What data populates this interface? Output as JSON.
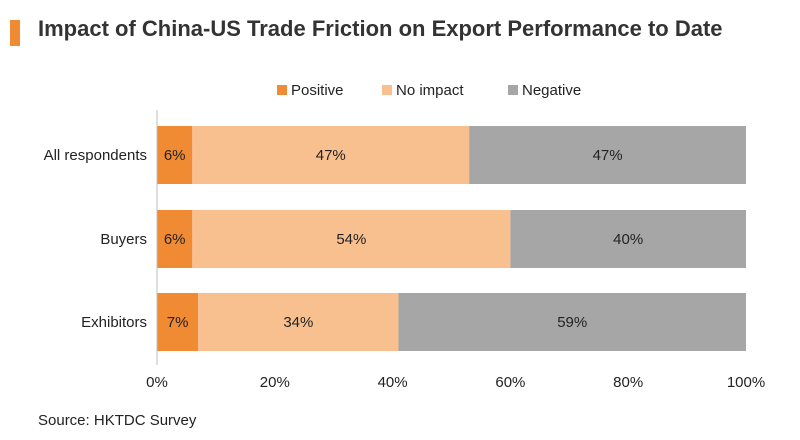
{
  "header": {
    "title": "Impact of China-US Trade Friction on Export Performance to Date"
  },
  "footer": {
    "source": "Source: HKTDC Survey"
  },
  "colors": {
    "accent": "#f08a33",
    "positive": "#f08a33",
    "no_impact": "#f9c08f",
    "negative": "#a6a6a6"
  },
  "chart_data": {
    "type": "bar",
    "orientation": "horizontal",
    "stacked": true,
    "title": "Impact of China-US Trade Friction on Export Performance to Date",
    "xlabel": "",
    "ylabel": "",
    "categories": [
      "All respondents",
      "Buyers",
      "Exhibitors"
    ],
    "series": [
      {
        "name": "Positive",
        "values": [
          6,
          6,
          7
        ],
        "color": "#f08a33"
      },
      {
        "name": "No impact",
        "values": [
          47,
          54,
          34
        ],
        "color": "#f9c08f"
      },
      {
        "name": "Negative",
        "values": [
          47,
          40,
          59
        ],
        "color": "#a6a6a6"
      }
    ],
    "xlim": [
      0,
      100
    ],
    "xticks": [
      "0%",
      "20%",
      "40%",
      "60%",
      "80%",
      "100%"
    ],
    "value_suffix": "%",
    "grid": false,
    "legend": "top"
  }
}
